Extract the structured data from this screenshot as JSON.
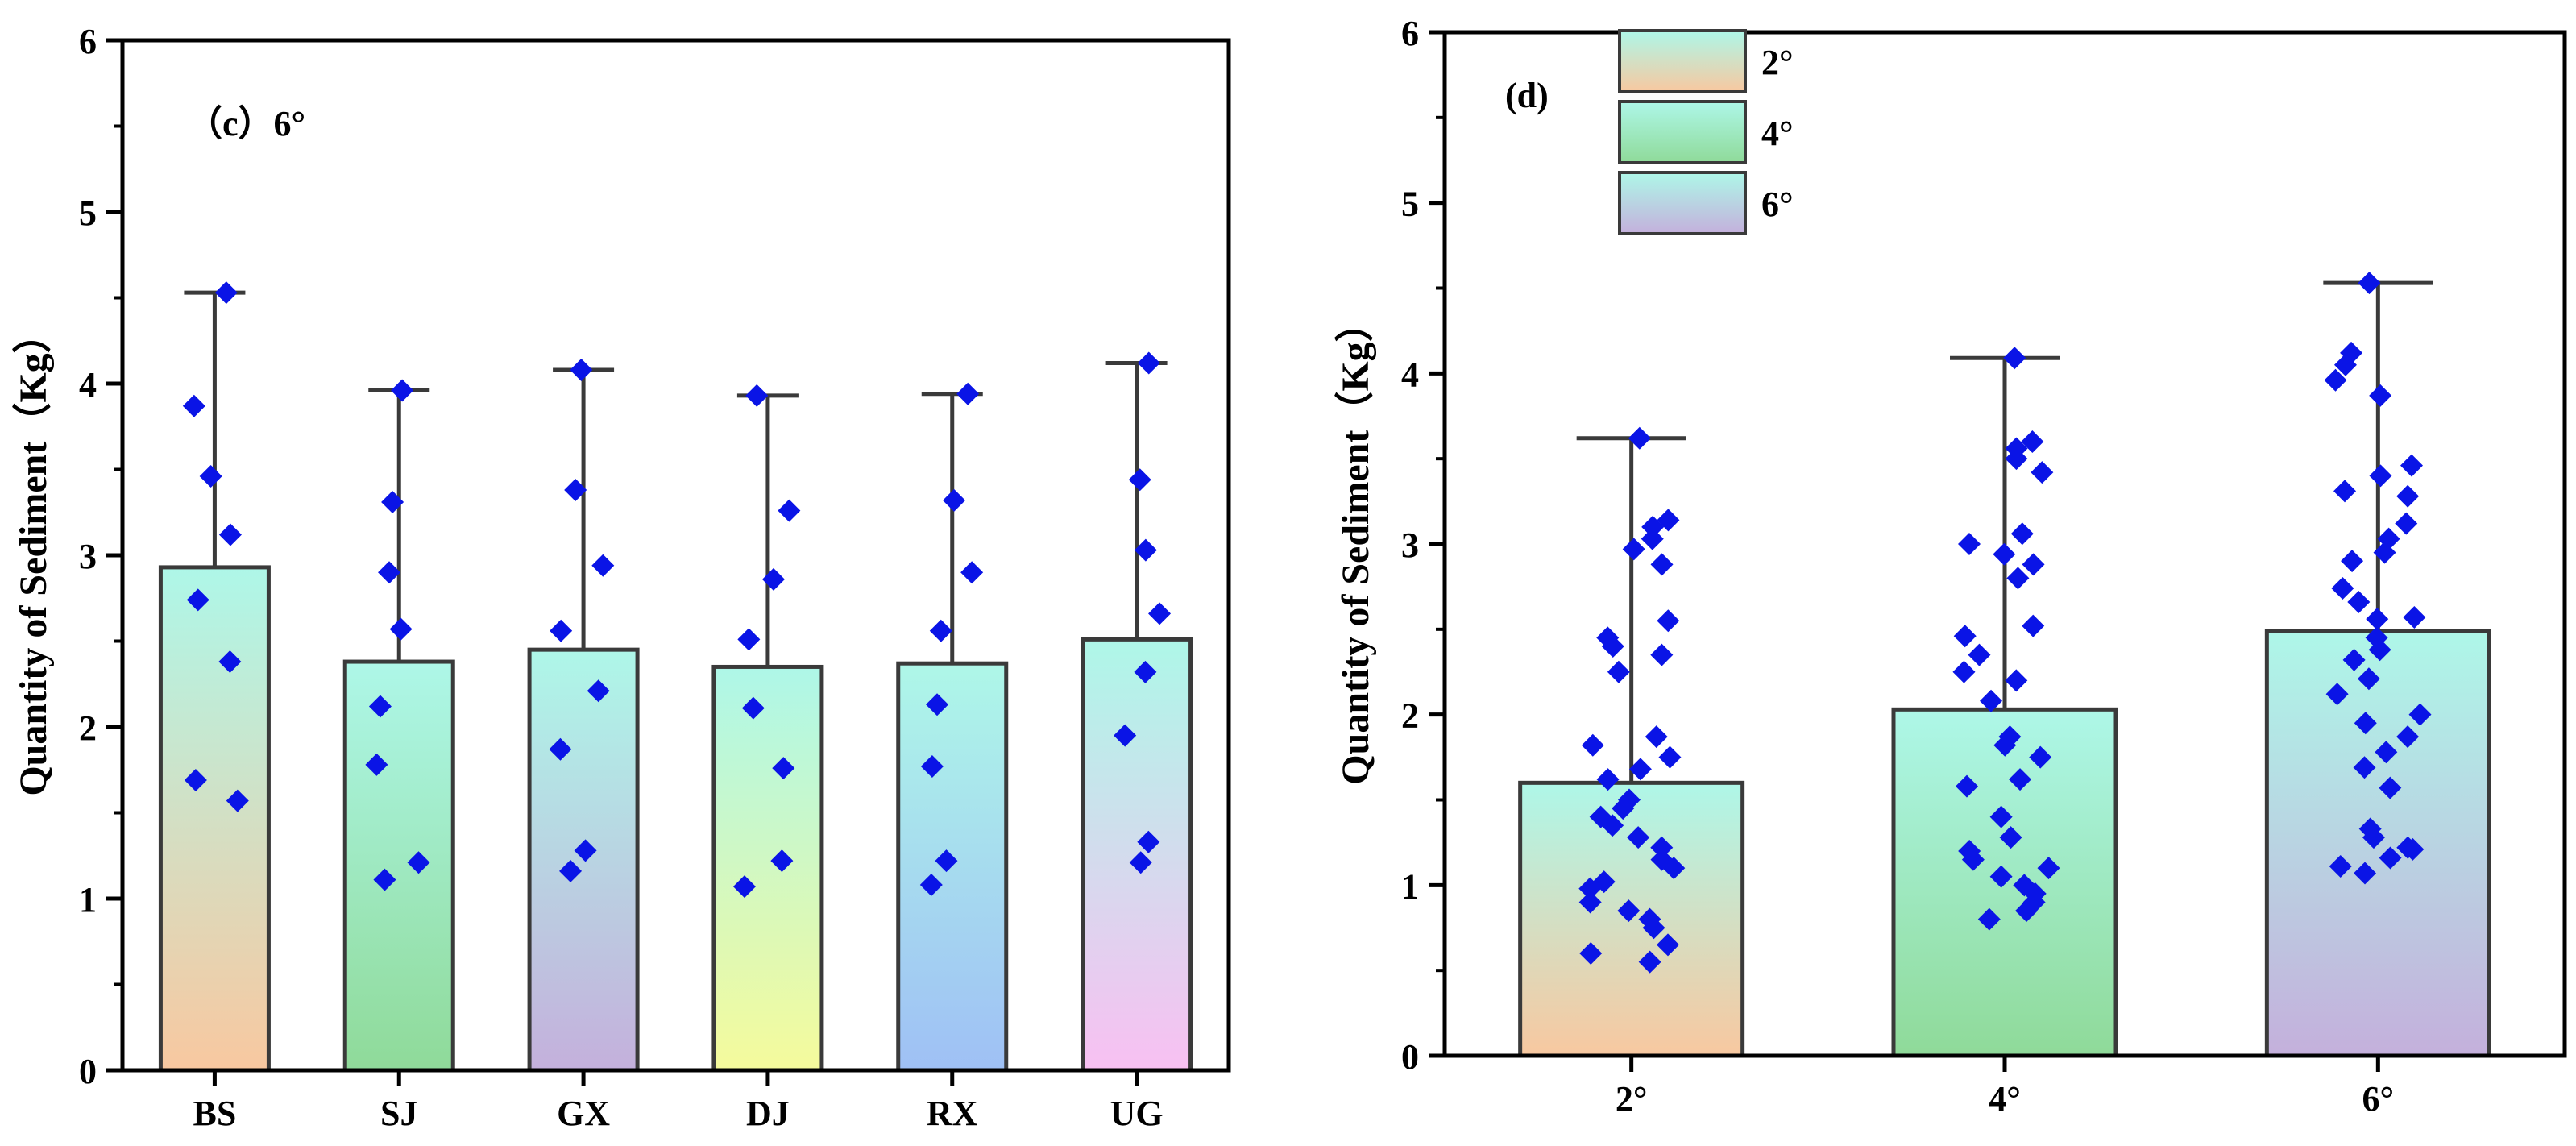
{
  "chart_data": [
    {
      "type": "bar",
      "panel_label": "（c）6°",
      "ylabel": "Quantity of Sediment（Kg）",
      "xlabel": "",
      "ylim": [
        0,
        6
      ],
      "yticks": [
        "0",
        "1",
        "2",
        "3",
        "4",
        "5",
        "6"
      ],
      "categories": [
        "BS",
        "SJ",
        "GX",
        "DJ",
        "RX",
        "UG"
      ],
      "values": [
        2.93,
        2.38,
        2.45,
        2.35,
        2.37,
        2.51
      ],
      "error_upper": [
        4.53,
        3.96,
        4.08,
        3.93,
        3.94,
        4.12
      ],
      "bar_colors": [
        [
          "#aef7e8",
          "#f8c8a0"
        ],
        [
          "#aef7e8",
          "#8fda99"
        ],
        [
          "#aef7e8",
          "#c4b0dc"
        ],
        [
          "#aef7e8",
          "#f5fa9c"
        ],
        [
          "#aef7e8",
          "#9fc0f5"
        ],
        [
          "#aef7e8",
          "#f8c0f2"
        ]
      ],
      "points": [
        [
          4.53,
          3.87,
          3.46,
          3.12,
          2.74,
          2.38,
          1.69,
          1.57
        ],
        [
          3.96,
          3.31,
          2.9,
          2.57,
          2.12,
          1.78,
          1.21,
          1.11
        ],
        [
          4.08,
          3.38,
          2.94,
          2.56,
          2.21,
          1.87,
          1.28,
          1.16
        ],
        [
          3.93,
          3.26,
          2.86,
          2.51,
          2.11,
          1.76,
          1.22,
          1.07
        ],
        [
          3.94,
          3.32,
          2.9,
          2.56,
          2.13,
          1.77,
          1.22,
          1.08
        ],
        [
          4.12,
          3.44,
          3.03,
          2.66,
          2.32,
          1.95,
          1.33,
          1.21
        ]
      ]
    },
    {
      "type": "bar",
      "panel_label": "(d)",
      "ylabel": "Quantity of Sediment（Kg）",
      "xlabel": "",
      "ylim": [
        0,
        6
      ],
      "yticks": [
        "0",
        "1",
        "2",
        "3",
        "4",
        "5",
        "6"
      ],
      "categories": [
        "2°",
        "4°",
        "6°"
      ],
      "values": [
        1.6,
        2.03,
        2.49
      ],
      "error_upper": [
        3.62,
        4.09,
        4.53
      ],
      "bar_colors": [
        [
          "#aef7e8",
          "#f8c8a0"
        ],
        [
          "#aef7e8",
          "#8fda99"
        ],
        [
          "#aef7e8",
          "#c4b0dc"
        ]
      ],
      "legend": [
        "2°",
        "4°",
        "6°"
      ],
      "points": [
        [
          3.62,
          3.14,
          3.1,
          3.03,
          2.97,
          2.88,
          2.55,
          2.45,
          2.4,
          2.35,
          2.25,
          1.87,
          1.82,
          1.75,
          1.68,
          1.62,
          1.5,
          1.45,
          1.4,
          1.35,
          1.28,
          1.22,
          1.15,
          1.1,
          1.02,
          0.98,
          0.9,
          0.85,
          0.8,
          0.75,
          0.65,
          0.6,
          0.55
        ],
        [
          4.09,
          3.6,
          3.56,
          3.5,
          3.42,
          3.06,
          3.0,
          2.94,
          2.88,
          2.8,
          2.52,
          2.46,
          2.35,
          2.25,
          2.2,
          2.08,
          1.87,
          1.82,
          1.75,
          1.62,
          1.58,
          1.4,
          1.28,
          1.2,
          1.15,
          1.1,
          1.05,
          1.0,
          0.95,
          0.9,
          0.85,
          0.8
        ],
        [
          4.53,
          4.12,
          4.05,
          3.96,
          3.87,
          3.46,
          3.4,
          3.31,
          3.28,
          3.12,
          3.03,
          2.95,
          2.9,
          2.74,
          2.66,
          2.57,
          2.56,
          2.45,
          2.38,
          2.32,
          2.21,
          2.12,
          2.0,
          1.95,
          1.87,
          1.78,
          1.69,
          1.57,
          1.33,
          1.28,
          1.22,
          1.21,
          1.16,
          1.11,
          1.07
        ]
      ]
    }
  ]
}
